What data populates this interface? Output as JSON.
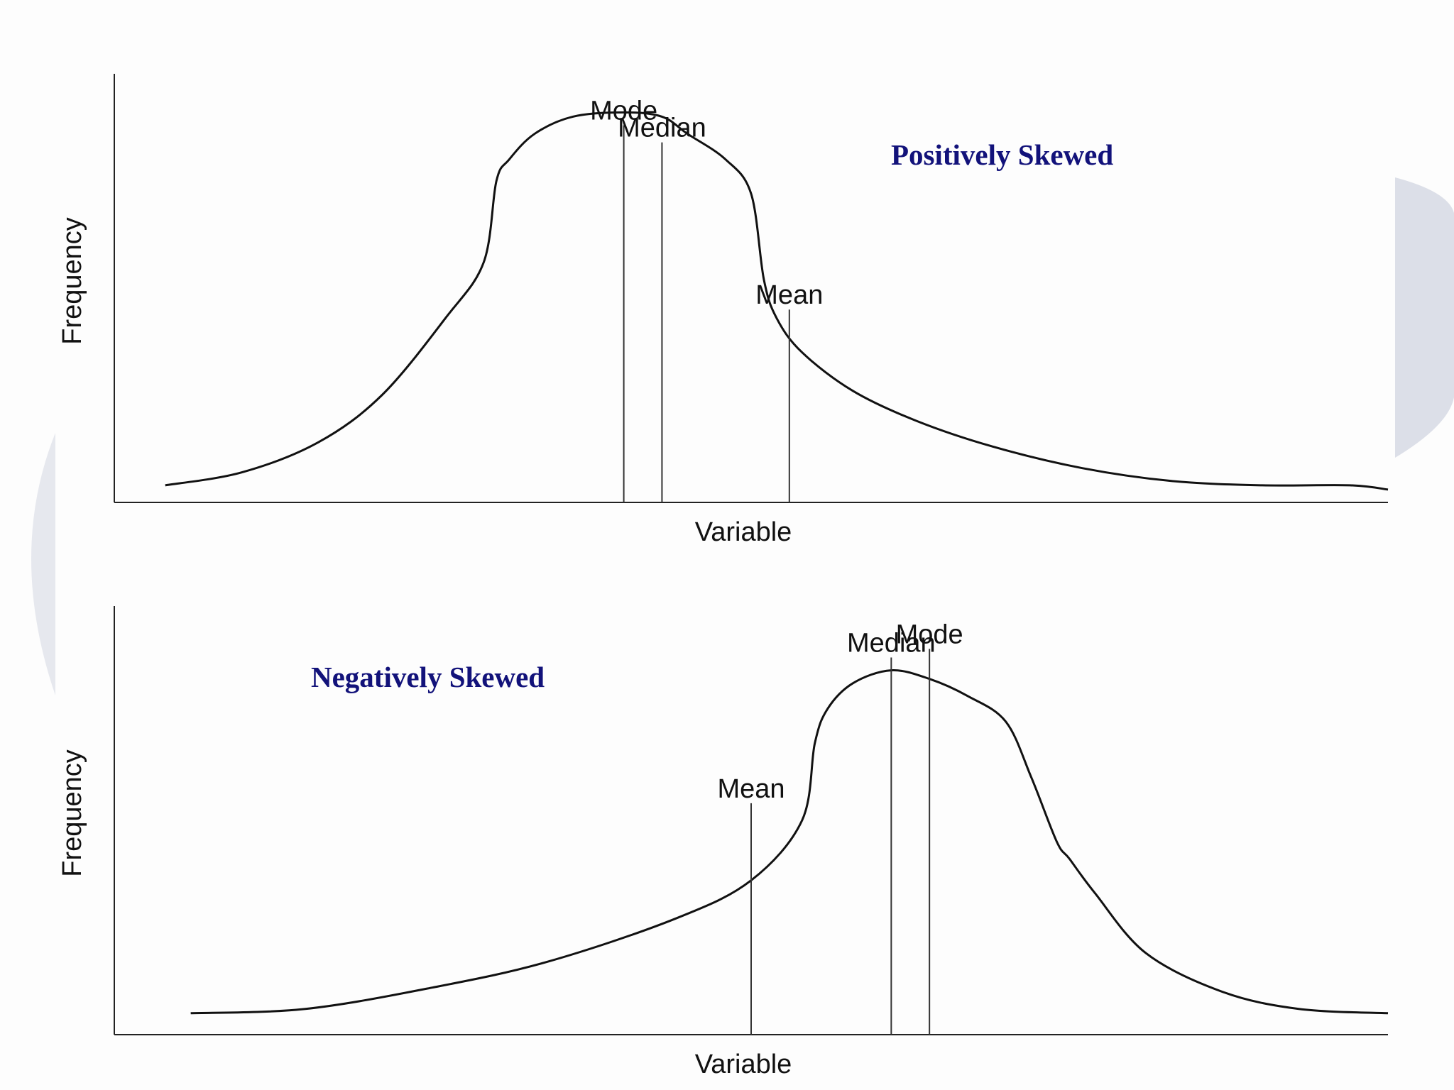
{
  "colors": {
    "curve": "#111111",
    "axis": "#222222",
    "title": "#12127a",
    "background_arc": "#dcdfe8"
  },
  "chart_data": [
    {
      "type": "line",
      "title": "Positively Skewed",
      "xlabel": "Variable",
      "ylabel": "Frequency",
      "xlim": [
        0,
        1
      ],
      "ylim": [
        0,
        1
      ],
      "grid": false,
      "series": [
        {
          "x": [
            0.04,
            0.1,
            0.16,
            0.21,
            0.26,
            0.29,
            0.3,
            0.31,
            0.33,
            0.36,
            0.4,
            0.43,
            0.45,
            0.48,
            0.5,
            0.51,
            0.52,
            0.54,
            0.58,
            0.63,
            0.69,
            0.76,
            0.83,
            0.9,
            0.97,
            1.0
          ],
          "values": [
            0.04,
            0.07,
            0.14,
            0.25,
            0.43,
            0.56,
            0.75,
            0.8,
            0.86,
            0.9,
            0.91,
            0.9,
            0.86,
            0.8,
            0.72,
            0.52,
            0.43,
            0.35,
            0.26,
            0.19,
            0.13,
            0.08,
            0.05,
            0.04,
            0.04,
            0.03
          ]
        }
      ],
      "markers": [
        {
          "label": "Mode",
          "x": 0.4,
          "top": 0.88
        },
        {
          "label": "Median",
          "x": 0.43,
          "top": 0.84
        },
        {
          "label": "Mean",
          "x": 0.53,
          "top": 0.45
        }
      ]
    },
    {
      "type": "line",
      "title": "Negatively Skewed",
      "xlabel": "Variable",
      "ylabel": "Frequency",
      "xlim": [
        0,
        1
      ],
      "ylim": [
        0,
        1
      ],
      "grid": false,
      "series": [
        {
          "x": [
            0.06,
            0.15,
            0.25,
            0.34,
            0.44,
            0.5,
            0.54,
            0.55,
            0.56,
            0.58,
            0.61,
            0.64,
            0.67,
            0.7,
            0.72,
            0.74,
            0.75,
            0.77,
            0.81,
            0.87,
            0.93,
            1.0
          ],
          "values": [
            0.05,
            0.06,
            0.11,
            0.17,
            0.27,
            0.36,
            0.5,
            0.68,
            0.76,
            0.82,
            0.85,
            0.83,
            0.79,
            0.73,
            0.6,
            0.45,
            0.41,
            0.33,
            0.19,
            0.1,
            0.06,
            0.05
          ]
        }
      ],
      "markers": [
        {
          "label": "Mean",
          "x": 0.5,
          "top": 0.54
        },
        {
          "label": "Median",
          "x": 0.61,
          "top": 0.88
        },
        {
          "label": "Mode",
          "x": 0.64,
          "top": 0.9
        }
      ]
    }
  ]
}
